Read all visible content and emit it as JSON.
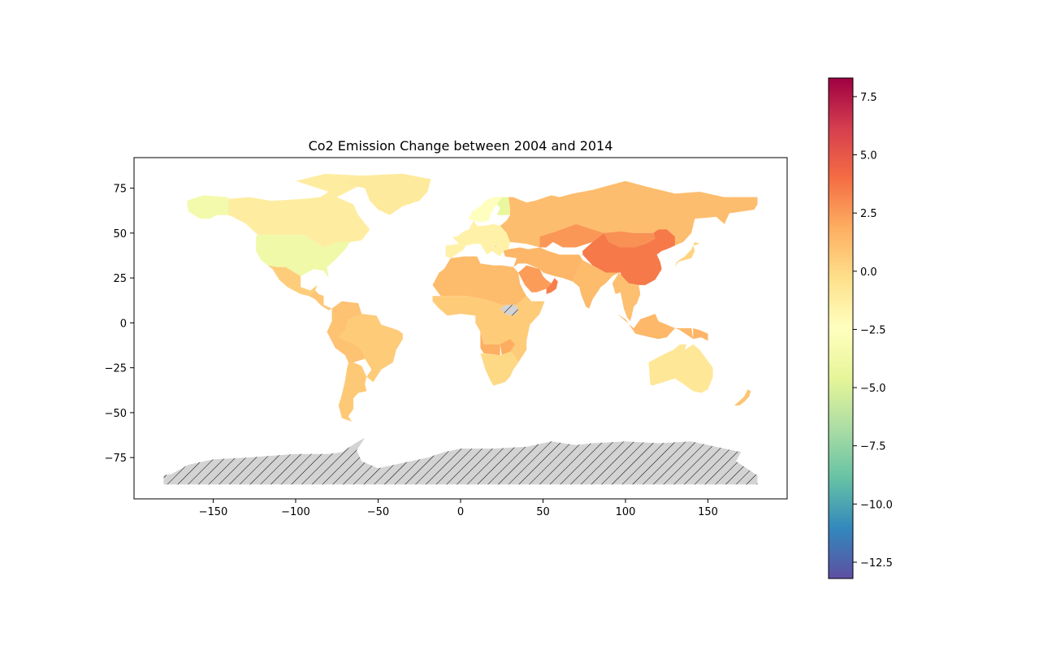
{
  "chart_data": {
    "type": "choropleth",
    "title": "Co2 Emission Change between 2004 and 2014",
    "xlabel": "",
    "ylabel": "",
    "xlim": [
      -198,
      198
    ],
    "ylim": [
      -98,
      92
    ],
    "x_ticks": [
      -150,
      -100,
      -50,
      0,
      50,
      100,
      150
    ],
    "y_ticks": [
      75,
      50,
      25,
      0,
      -25,
      -50,
      -75
    ],
    "x_tick_labels": [
      "−150",
      "−100",
      "−50",
      "0",
      "50",
      "100",
      "150"
    ],
    "y_tick_labels": [
      "75",
      "50",
      "25",
      "0",
      "−25",
      "−50",
      "−75"
    ],
    "colorbar": {
      "cmap": "Spectral_r",
      "vmin": -13.2,
      "vmax": 8.3,
      "ticks": [
        7.5,
        5.0,
        2.5,
        0.0,
        -2.5,
        -5.0,
        -7.5,
        -10.0,
        -12.5
      ],
      "tick_labels": [
        "7.5",
        "5.0",
        "2.5",
        "0.0",
        "−2.5",
        "−5.0",
        "−7.5",
        "−10.0",
        "−12.5"
      ]
    },
    "missing_data": {
      "style": "hatched",
      "color": "#d3d3d3",
      "regions": [
        "Antarctica",
        "South Sudan",
        "Kosovo"
      ]
    },
    "regions": [
      {
        "name": "Canada",
        "value": -1.2
      },
      {
        "name": "Alaska",
        "value": -3.5
      },
      {
        "name": "United States",
        "value": -3.8
      },
      {
        "name": "Mexico",
        "value": 0.5
      },
      {
        "name": "Central America",
        "value": 0.8
      },
      {
        "name": "Greenland",
        "value": -1.0
      },
      {
        "name": "Brazil",
        "value": 0.6
      },
      {
        "name": "Argentina",
        "value": 0.7
      },
      {
        "name": "Andean South America",
        "value": 1.0
      },
      {
        "name": "Europe",
        "value": -1.5
      },
      {
        "name": "Scandinavia",
        "value": -2.5
      },
      {
        "name": "Finland",
        "value": -4.2
      },
      {
        "name": "Russia",
        "value": 1.2
      },
      {
        "name": "Kazakhstan",
        "value": 2.6
      },
      {
        "name": "Mongolia",
        "value": 2.8
      },
      {
        "name": "China",
        "value": 3.6
      },
      {
        "name": "India",
        "value": 1.3
      },
      {
        "name": "Middle East",
        "value": 1.5
      },
      {
        "name": "Saudi Arabia",
        "value": 2.4
      },
      {
        "name": "Oman",
        "value": 3.4
      },
      {
        "name": "Southeast Asia",
        "value": 1.1
      },
      {
        "name": "Indonesia",
        "value": 1.4
      },
      {
        "name": "Japan",
        "value": 0.2
      },
      {
        "name": "North Africa",
        "value": 1.3
      },
      {
        "name": "Sub-Saharan Africa",
        "value": 0.6
      },
      {
        "name": "Angola",
        "value": 1.8
      },
      {
        "name": "Zambia",
        "value": 1.9
      },
      {
        "name": "Southern Africa",
        "value": 0.0
      },
      {
        "name": "Australia",
        "value": -0.8
      },
      {
        "name": "New Zealand",
        "value": 0.9
      },
      {
        "name": "Papua New Guinea",
        "value": 1.6
      }
    ]
  }
}
